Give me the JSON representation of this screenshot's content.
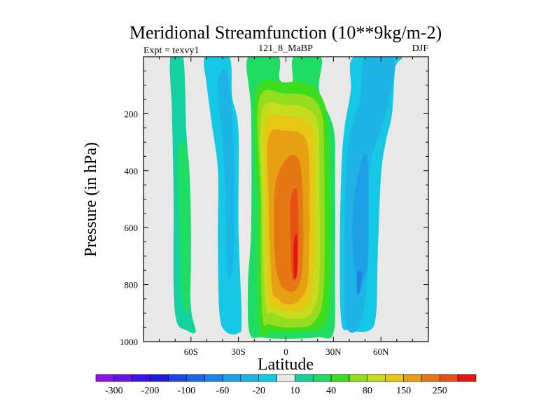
{
  "chart_data": {
    "type": "contour",
    "title": "Meridional Streamfunction (10**9kg/m-2)",
    "subtitle_left": "Expt = texvy1",
    "subtitle_center": "121_8_MaBP",
    "subtitle_right": "DJF",
    "xlabel": "Latitude",
    "ylabel": "Pressure (in hPa)",
    "xlim": [
      -90,
      90
    ],
    "ylim": [
      1000,
      0
    ],
    "x_ticks": [
      {
        "value": -60,
        "label": "60S"
      },
      {
        "value": -30,
        "label": "30S"
      },
      {
        "value": 0,
        "label": "0"
      },
      {
        "value": 30,
        "label": "30N"
      },
      {
        "value": 60,
        "label": "60N"
      }
    ],
    "y_ticks": [
      {
        "value": 200,
        "label": "200"
      },
      {
        "value": 400,
        "label": "400"
      },
      {
        "value": 600,
        "label": "600"
      },
      {
        "value": 800,
        "label": "800"
      },
      {
        "value": 1000,
        "label": "1000"
      }
    ],
    "levels": [
      -300,
      -250,
      -200,
      -150,
      -100,
      -80,
      -60,
      -40,
      -20,
      -10,
      10,
      20,
      40,
      60,
      80,
      100,
      150,
      200,
      250,
      300
    ],
    "colorbar_colors": [
      "#8A14E6",
      "#6414E6",
      "#3C14E6",
      "#1E1EDC",
      "#1E46E6",
      "#1E64E6",
      "#1E82E6",
      "#1EA0E6",
      "#1EB4E6",
      "#14C8E6",
      "#E8E8E8",
      "#14D2A0",
      "#1EDC64",
      "#3CDC1E",
      "#96DC1E",
      "#C8DC1E",
      "#E6C814",
      "#E6A014",
      "#E67814",
      "#E65014",
      "#E61414"
    ],
    "colorbar_labels": [
      {
        "after_level_index": 0,
        "label": "-300"
      },
      {
        "after_level_index": 2,
        "label": "-200"
      },
      {
        "after_level_index": 4,
        "label": "-100"
      },
      {
        "after_level_index": 6,
        "label": "-60"
      },
      {
        "after_level_index": 8,
        "label": "-20"
      },
      {
        "after_level_index": 10,
        "label": "10"
      },
      {
        "after_level_index": 12,
        "label": "40"
      },
      {
        "after_level_index": 14,
        "label": "80"
      },
      {
        "after_level_index": 16,
        "label": "150"
      },
      {
        "after_level_index": 18,
        "label": "250"
      }
    ],
    "background_color": "#E8E8E8",
    "regions": [
      {
        "name": "sh-polar-cell",
        "sign": "positive",
        "color": "#14D2A0",
        "color_index": 11,
        "boundary": [
          [
            -73,
            0
          ],
          [
            -65,
            0
          ],
          [
            -63,
            260
          ],
          [
            -61,
            420
          ],
          [
            -61,
            650
          ],
          [
            -60,
            880
          ],
          [
            -57,
            965
          ],
          [
            -63,
            960
          ],
          [
            -69,
            930
          ],
          [
            -71,
            800
          ],
          [
            -71,
            500
          ],
          [
            -72,
            200
          ]
        ]
      },
      {
        "name": "sh-polar-core",
        "sign": "positive",
        "color": "#1EDC64",
        "color_index": 12,
        "boundary": [
          [
            -68,
            330
          ],
          [
            -62,
            340
          ],
          [
            -60,
            600
          ],
          [
            -61,
            880
          ],
          [
            -65,
            870
          ],
          [
            -67,
            700
          ]
        ]
      },
      {
        "name": "sh-ferrel-cell",
        "sign": "negative",
        "color": "#14C8E6",
        "color_index": 9,
        "boundary": [
          [
            -51,
            0
          ],
          [
            -36,
            0
          ],
          [
            -34,
            140
          ],
          [
            -30,
            260
          ],
          [
            -30,
            600
          ],
          [
            -28,
            920
          ],
          [
            -30,
            970
          ],
          [
            -38,
            965
          ],
          [
            -42,
            900
          ],
          [
            -43,
            650
          ],
          [
            -43,
            400
          ],
          [
            -47,
            230
          ],
          [
            -50,
            100
          ]
        ]
      },
      {
        "name": "sh-ferrel-core",
        "sign": "negative",
        "color": "#1EB4E6",
        "color_index": 8,
        "boundary": [
          [
            -43,
            90
          ],
          [
            -37,
            60
          ],
          [
            -33,
            300
          ],
          [
            -33,
            700
          ],
          [
            -37,
            760
          ],
          [
            -38,
            500
          ],
          [
            -40,
            300
          ]
        ]
      },
      {
        "name": "hadley-cell-10",
        "sign": "positive",
        "color": "#1EDC64",
        "color_index": 12,
        "boundary": [
          [
            -24,
            0
          ],
          [
            -5,
            0
          ],
          [
            -4,
            80
          ],
          [
            4,
            90
          ],
          [
            5,
            0
          ],
          [
            22,
            0
          ],
          [
            21,
            120
          ],
          [
            30,
            250
          ],
          [
            31,
            400
          ],
          [
            31,
            780
          ],
          [
            30,
            970
          ],
          [
            20,
            985
          ],
          [
            0,
            990
          ],
          [
            -15,
            985
          ],
          [
            -23,
            970
          ],
          [
            -24,
            800
          ],
          [
            -22,
            600
          ],
          [
            -22,
            200
          ]
        ]
      },
      {
        "name": "hadley-cell-20",
        "sign": "positive",
        "color": "#3CDC1E",
        "color_index": 13,
        "boundary": [
          [
            -19,
            120
          ],
          [
            0,
            90
          ],
          [
            16,
            100
          ],
          [
            24,
            160
          ],
          [
            27,
            260
          ],
          [
            28,
            500
          ],
          [
            28,
            780
          ],
          [
            25,
            940
          ],
          [
            10,
            965
          ],
          [
            -8,
            965
          ],
          [
            -17,
            940
          ],
          [
            -18,
            500
          ]
        ]
      },
      {
        "name": "hadley-cell-40",
        "sign": "positive",
        "color": "#96DC1E",
        "color_index": 14,
        "boundary": [
          [
            -17,
            150
          ],
          [
            0,
            130
          ],
          [
            15,
            140
          ],
          [
            22,
            190
          ],
          [
            24,
            300
          ],
          [
            24,
            800
          ],
          [
            18,
            930
          ],
          [
            5,
            950
          ],
          [
            -10,
            940
          ],
          [
            -15,
            900
          ],
          [
            -16,
            500
          ]
        ]
      },
      {
        "name": "hadley-cell-60",
        "sign": "positive",
        "color": "#C8DC1E",
        "color_index": 15,
        "boundary": [
          [
            -15,
            190
          ],
          [
            0,
            170
          ],
          [
            12,
            180
          ],
          [
            20,
            230
          ],
          [
            21,
            400
          ],
          [
            21,
            780
          ],
          [
            16,
            900
          ],
          [
            4,
            920
          ],
          [
            -8,
            900
          ],
          [
            -13,
            860
          ],
          [
            -15,
            500
          ]
        ]
      },
      {
        "name": "hadley-cell-80",
        "sign": "positive",
        "color": "#E6C814",
        "color_index": 16,
        "boundary": [
          [
            -13,
            230
          ],
          [
            0,
            210
          ],
          [
            11,
            220
          ],
          [
            17,
            270
          ],
          [
            18,
            450
          ],
          [
            17,
            800
          ],
          [
            12,
            880
          ],
          [
            3,
            895
          ],
          [
            -6,
            880
          ],
          [
            -11,
            840
          ],
          [
            -13,
            500
          ]
        ]
      },
      {
        "name": "hadley-cell-100",
        "sign": "positive",
        "color": "#E6A014",
        "color_index": 17,
        "boundary": [
          [
            -11,
            280
          ],
          [
            0,
            260
          ],
          [
            9,
            270
          ],
          [
            14,
            320
          ],
          [
            15,
            500
          ],
          [
            14,
            780
          ],
          [
            9,
            850
          ],
          [
            2,
            870
          ],
          [
            -5,
            850
          ],
          [
            -9,
            800
          ],
          [
            -11,
            500
          ]
        ]
      },
      {
        "name": "hadley-cell-150",
        "sign": "positive",
        "color": "#E67814",
        "color_index": 18,
        "boundary": [
          [
            -7,
            460
          ],
          [
            0,
            360
          ],
          [
            7,
            350
          ],
          [
            10,
            420
          ],
          [
            11,
            600
          ],
          [
            10,
            760
          ],
          [
            6,
            820
          ],
          [
            0,
            820
          ],
          [
            -4,
            790
          ],
          [
            -7,
            700
          ]
        ]
      },
      {
        "name": "hadley-cell-200",
        "sign": "positive",
        "color": "#E65014",
        "color_index": 19,
        "boundary": [
          [
            3,
            500
          ],
          [
            7,
            470
          ],
          [
            8,
            650
          ],
          [
            7,
            760
          ],
          [
            4,
            780
          ],
          [
            3,
            650
          ]
        ]
      },
      {
        "name": "hadley-cell-250",
        "sign": "positive",
        "color": "#E61414",
        "color_index": 20,
        "boundary": [
          [
            5,
            650
          ],
          [
            7,
            630
          ],
          [
            7,
            760
          ],
          [
            5,
            770
          ]
        ]
      },
      {
        "name": "nh-ferrel-cell",
        "sign": "negative",
        "color": "#14C8E6",
        "color_index": 9,
        "boundary": [
          [
            43,
            0
          ],
          [
            72,
            0
          ],
          [
            69,
            40
          ],
          [
            67,
            200
          ],
          [
            63,
            300
          ],
          [
            60,
            420
          ],
          [
            58,
            700
          ],
          [
            57,
            900
          ],
          [
            53,
            960
          ],
          [
            40,
            960
          ],
          [
            35,
            930
          ],
          [
            34,
            700
          ],
          [
            35,
            400
          ],
          [
            37,
            250
          ],
          [
            41,
            120
          ]
        ]
      },
      {
        "name": "nh-ferrel-10",
        "sign": "negative",
        "color": "#1EB4E6",
        "color_index": 8,
        "boundary": [
          [
            50,
            0
          ],
          [
            68,
            0
          ],
          [
            65,
            160
          ],
          [
            59,
            270
          ],
          [
            54,
            360
          ],
          [
            52,
            500
          ],
          [
            51,
            800
          ],
          [
            46,
            950
          ],
          [
            38,
            940
          ],
          [
            37,
            700
          ],
          [
            38,
            400
          ],
          [
            41,
            260
          ],
          [
            47,
            140
          ]
        ]
      },
      {
        "name": "nh-ferrel-20",
        "sign": "negative",
        "color": "#1EA0E6",
        "color_index": 7,
        "boundary": [
          [
            47,
            380
          ],
          [
            50,
            340
          ],
          [
            52,
            400
          ],
          [
            52,
            700
          ],
          [
            49,
            780
          ],
          [
            45,
            780
          ],
          [
            42,
            650
          ],
          [
            43,
            500
          ]
        ]
      },
      {
        "name": "nh-ferrel-40",
        "sign": "negative",
        "color": "#1E82E6",
        "color_index": 6,
        "boundary": [
          [
            45,
            760
          ],
          [
            48,
            760
          ],
          [
            47,
            820
          ],
          [
            45,
            830
          ]
        ]
      }
    ]
  }
}
